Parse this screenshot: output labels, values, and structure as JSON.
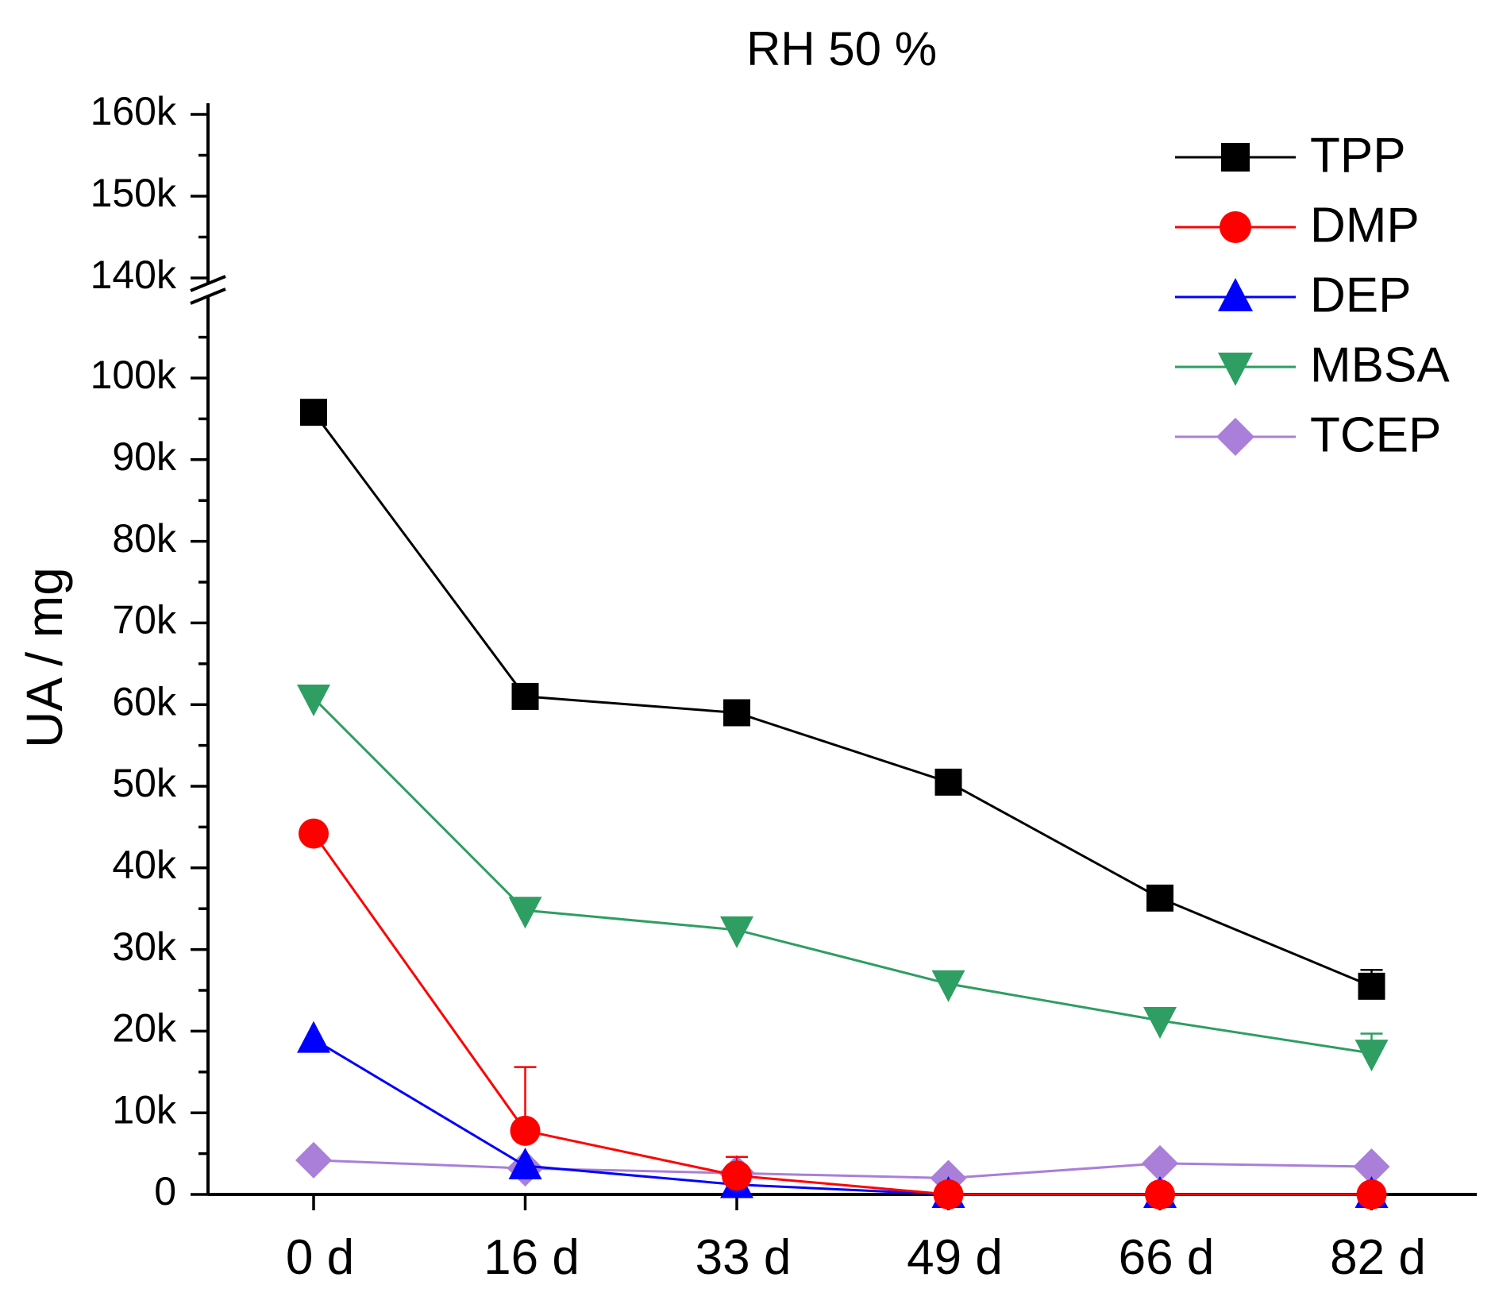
{
  "chart_data": {
    "type": "line",
    "title": "RH 50 %",
    "xlabel": "",
    "ylabel": "UA / mg",
    "categories": [
      "0 d",
      "16 d",
      "33 d",
      "49 d",
      "66 d",
      "82 d"
    ],
    "y_axis": {
      "lower_range": [
        0,
        105000
      ],
      "upper_range": [
        140000,
        160000
      ],
      "break": true,
      "lower_tick_values": [
        0,
        10000,
        20000,
        30000,
        40000,
        50000,
        60000,
        70000,
        80000,
        90000,
        100000
      ],
      "lower_tick_labels": [
        "0",
        "10k",
        "20k",
        "30k",
        "40k",
        "50k",
        "60k",
        "70k",
        "80k",
        "90k",
        "100k"
      ],
      "upper_tick_values": [
        140000,
        150000,
        160000
      ],
      "upper_tick_labels": [
        "140k",
        "150k",
        "160k"
      ]
    },
    "legend_position": "top-right",
    "series": [
      {
        "name": "TPP",
        "color": "#000000",
        "marker": "square",
        "values": [
          95800,
          61000,
          59000,
          50500,
          36300,
          25500
        ],
        "errors": [
          0,
          0,
          0,
          0,
          0,
          2000
        ]
      },
      {
        "name": "DMP",
        "color": "#ff0000",
        "marker": "circle",
        "values": [
          44200,
          7800,
          2300,
          0,
          0,
          0
        ],
        "errors": [
          0,
          7800,
          2300,
          0,
          0,
          0
        ]
      },
      {
        "name": "DEP",
        "color": "#0000ff",
        "marker": "triangle-up",
        "values": [
          19000,
          3500,
          1200,
          0,
          0,
          0
        ],
        "errors": [
          0,
          0,
          0,
          0,
          0,
          0
        ]
      },
      {
        "name": "MBSA",
        "color": "#2e9e62",
        "marker": "triangle-down",
        "values": [
          60800,
          34800,
          32400,
          25800,
          21300,
          17300
        ],
        "errors": [
          0,
          0,
          0,
          0,
          0,
          2400
        ]
      },
      {
        "name": "TCEP",
        "color": "#a97fd9",
        "marker": "diamond",
        "values": [
          4200,
          3200,
          2600,
          2000,
          3800,
          3400
        ],
        "errors": [
          0,
          0,
          0,
          0,
          0,
          0
        ]
      }
    ]
  }
}
